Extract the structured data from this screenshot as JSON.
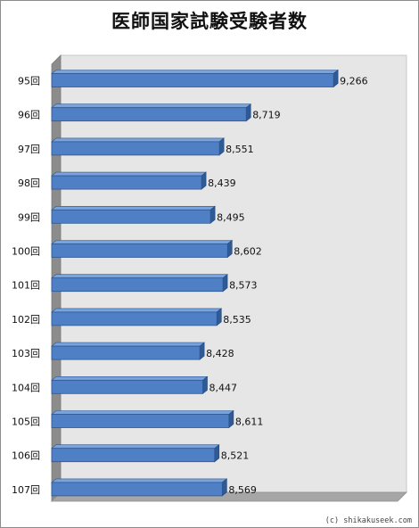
{
  "chart_data": {
    "type": "bar",
    "orientation": "horizontal",
    "title": "医師国家試験受験者数",
    "categories": [
      "95回",
      "96回",
      "97回",
      "98回",
      "99回",
      "100回",
      "101回",
      "102回",
      "103回",
      "104回",
      "105回",
      "106回",
      "107回"
    ],
    "values": [
      9266,
      8719,
      8551,
      8439,
      8495,
      8602,
      8573,
      8535,
      8428,
      8447,
      8611,
      8521,
      8569
    ],
    "value_labels": [
      "9,266",
      "8,719",
      "8,551",
      "8,439",
      "8,495",
      "8,602",
      "8,573",
      "8,535",
      "8,428",
      "8,447",
      "8,611",
      "8,521",
      "8,569"
    ],
    "xlim": [
      7500,
      9500
    ],
    "grid": false,
    "legend": "none",
    "colors": {
      "bar_front": "#4f80c6",
      "bar_top": "#7aa3dc",
      "bar_side": "#2f5a96",
      "wall": "#e6e6e6",
      "floor": "#a6a6a6",
      "left_wall": "#8c8c8c"
    }
  },
  "footer": {
    "credit": "(c) shikakuseek.com"
  }
}
